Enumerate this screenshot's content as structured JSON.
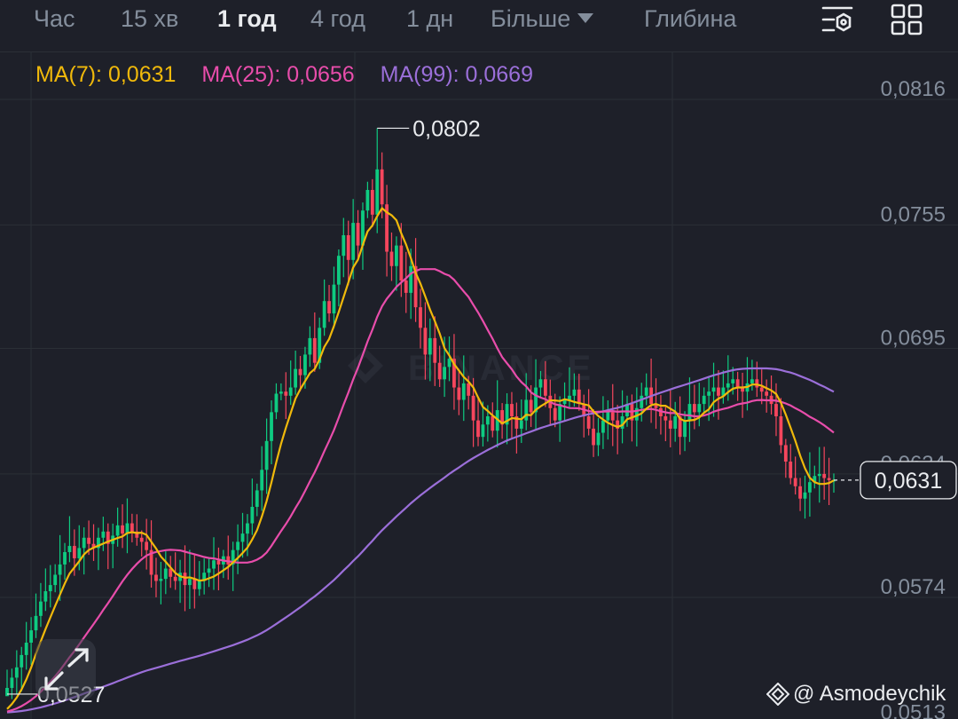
{
  "tabs": {
    "items": [
      {
        "label": "Час",
        "active": false
      },
      {
        "label": "15 хв",
        "active": false
      },
      {
        "label": "1 год",
        "active": true
      },
      {
        "label": "4 год",
        "active": false
      },
      {
        "label": "1 дн",
        "active": false
      },
      {
        "label": "Більше",
        "active": false
      },
      {
        "label": "Глибина",
        "active": false
      }
    ]
  },
  "toolbar": {
    "icons": [
      "indicator-settings-icon",
      "layout-grid-icon"
    ]
  },
  "legend": {
    "ma7": {
      "label": "MA(7): 0,0631",
      "color": "#f0b90b"
    },
    "ma25": {
      "label": "MA(25): 0,0656",
      "color": "#e84dab"
    },
    "ma99": {
      "label": "MA(99): 0,0669",
      "color": "#9b6fd9"
    }
  },
  "colors": {
    "up": "#0ecb81",
    "down": "#f6465d",
    "background": "#1e2029",
    "grid": "#2b2f36"
  },
  "watermark": {
    "logo_text": "BINANCE",
    "author": "@ Asmodeychik"
  },
  "chart_data": {
    "type": "candlestick",
    "timeframe": "1 год",
    "y_ticks": [
      "0,0816",
      "0,0755",
      "0,0695",
      "0,0634",
      "0,0574",
      "0,0513"
    ],
    "y_tick_values": [
      0.0816,
      0.0755,
      0.0695,
      0.0634,
      0.0574,
      0.0513
    ],
    "ylim": [
      0.0505,
      0.0835
    ],
    "last_price": {
      "value": 0.0631,
      "label": "0,0631"
    },
    "high_marker": {
      "value": 0.0802,
      "label": "0,0802"
    },
    "low_marker": {
      "value": 0.0527,
      "label": "0,0527"
    },
    "grid": true,
    "series_note": "approximate close values per candle, read from chart",
    "closes": [
      0.053,
      0.0535,
      0.054,
      0.0546,
      0.0552,
      0.0558,
      0.0565,
      0.0572,
      0.0577,
      0.058,
      0.0585,
      0.059,
      0.0596,
      0.0599,
      0.0593,
      0.0598,
      0.0603,
      0.06,
      0.0598,
      0.0603,
      0.0606,
      0.06,
      0.0604,
      0.0609,
      0.0605,
      0.061,
      0.0606,
      0.0603,
      0.0601,
      0.0597,
      0.0585,
      0.0582,
      0.0583,
      0.0588,
      0.0584,
      0.0582,
      0.0586,
      0.058,
      0.0583,
      0.0578,
      0.0582,
      0.0586,
      0.0588,
      0.0592,
      0.059,
      0.0594,
      0.059,
      0.0597,
      0.0601,
      0.0605,
      0.061,
      0.0618,
      0.0626,
      0.0636,
      0.065,
      0.0664,
      0.0673,
      0.0674,
      0.0672,
      0.0676,
      0.0685,
      0.0682,
      0.0692,
      0.07,
      0.0688,
      0.0705,
      0.0718,
      0.0712,
      0.0726,
      0.074,
      0.075,
      0.0738,
      0.0756,
      0.0745,
      0.0762,
      0.0772,
      0.076,
      0.0782,
      0.0765,
      0.0742,
      0.0735,
      0.0745,
      0.0728,
      0.0722,
      0.0735,
      0.0715,
      0.0705,
      0.0692,
      0.07,
      0.0688,
      0.068,
      0.0686,
      0.069,
      0.0676,
      0.067,
      0.0678,
      0.0672,
      0.066,
      0.0652,
      0.0658,
      0.0662,
      0.0655,
      0.0665,
      0.0658,
      0.0668,
      0.0662,
      0.0656,
      0.066,
      0.067,
      0.0664,
      0.0676,
      0.068,
      0.0672,
      0.0666,
      0.066,
      0.0668,
      0.067,
      0.0672,
      0.0675,
      0.0668,
      0.0662,
      0.0656,
      0.0648,
      0.0654,
      0.066,
      0.0664,
      0.066,
      0.0656,
      0.0662,
      0.0668,
      0.066,
      0.0666,
      0.0672,
      0.0676,
      0.0668,
      0.0666,
      0.0662,
      0.066,
      0.0656,
      0.0662,
      0.0652,
      0.066,
      0.0668,
      0.0664,
      0.0668,
      0.0672,
      0.0674,
      0.0676,
      0.0672,
      0.0676,
      0.0678,
      0.068,
      0.0676,
      0.0674,
      0.0678,
      0.068,
      0.0676,
      0.0674,
      0.0672,
      0.0668,
      0.0662,
      0.0648,
      0.064,
      0.0632,
      0.0628,
      0.0622,
      0.0625,
      0.063,
      0.0633,
      0.0634,
      0.0632,
      0.0631,
      0.0631
    ]
  }
}
